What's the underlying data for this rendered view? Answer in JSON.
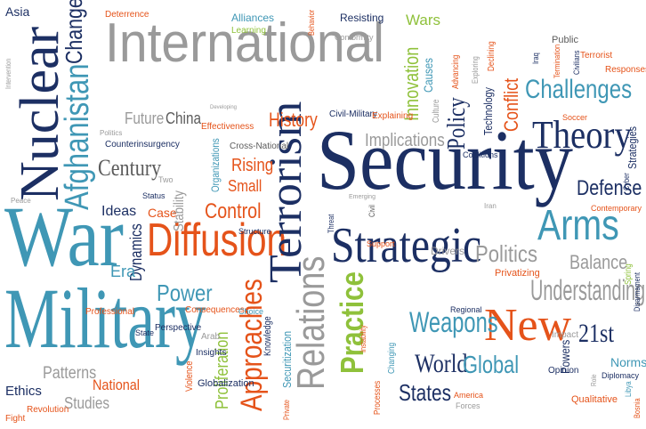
{
  "colors": {
    "navy": "#1c2f63",
    "teal": "#3f97b5",
    "light_teal": "#6fb4cb",
    "orange": "#e5531a",
    "gray": "#9a9a9a",
    "dark_gray": "#5c5c5c",
    "green": "#8fc13b"
  },
  "words": {
    "international": "International",
    "security": "Security",
    "war": "War",
    "military": "Military",
    "nuclear": "Nuclear",
    "afghanistan": "Afghanistan",
    "change": "Change",
    "diffusion": "Diffusion",
    "terrorism": "Terrorism",
    "strategic": "Strategic",
    "relations": "Relations",
    "practice": "Practice",
    "new": "New",
    "theory": "Theory",
    "challenges": "Challenges",
    "arms": "Arms",
    "weapons": "Weapons",
    "understanding": "Understanding",
    "politics": "Politics",
    "power": "Power",
    "approaches": "Approaches",
    "world": "World",
    "global": "Global",
    "states": "States",
    "century": "Century",
    "control": "Control",
    "rising": "Rising",
    "small": "Small",
    "history": "History",
    "implications": "Implications",
    "policy": "Policy",
    "conflict": "Conflict",
    "innovation": "Innovation",
    "defense": "Defense",
    "balance": "Balance",
    "21st": "21st",
    "ethics": "Ethics",
    "patterns": "Patterns",
    "national": "National",
    "studies": "Studies",
    "proliferation": "Proliferation",
    "dynamics": "Dynamics",
    "ideas": "Ideas",
    "era": "Era",
    "case": "Case",
    "stability": "Stability",
    "future": "Future",
    "china": "China",
    "organizations": "Organizations",
    "wars": "Wars",
    "asia": "Asia",
    "deterrence": "Deterrence",
    "alliances": "Alliances",
    "learning": "Learning",
    "resisting": "Resisting",
    "conformity": "Conformity",
    "behavior": "Behavior",
    "public": "Public",
    "terrorist": "Terrorist",
    "responses": "Responses",
    "civilians": "Civilians",
    "strategies": "Strategies",
    "contemporary": "Contemporary",
    "opinion": "Opinion",
    "norms": "Norms",
    "qualitative": "Qualitative",
    "diplomacy": "Diplomacy",
    "impact": "Impact",
    "powers": "Powers",
    "regional": "Regional",
    "drivers": "Drivers",
    "support": "Support",
    "privatizing": "Privatizing",
    "america": "America",
    "forces": "Forces",
    "securitization": "Securitization",
    "knowledge": "Knowledge",
    "globalization": "Globalization",
    "violence": "Violence",
    "insights": "Insights",
    "arab": "Arab",
    "consequences": "Consequences",
    "perspective": "Perspective",
    "professional": "Professional",
    "state": "State",
    "revolution": "Revolution",
    "fight": "Fight",
    "choice": "Choice",
    "structure": "Structure",
    "cross_national": "Cross-National",
    "effectiveness": "Effectiveness",
    "counterinsurgency": "Counterinsurgency",
    "politics_small": "Politics",
    "status": "Status",
    "two": "Two",
    "peace": "Peace",
    "intervention": "Intervention",
    "civil_military": "Civil-Military",
    "explaining": "Explaining",
    "coalitions": "Coalitions",
    "culture": "Culture",
    "causes": "Causes",
    "advancing": "Advancing",
    "technology": "Technology",
    "exploring": "Exploring",
    "declining": "Declining",
    "soccer": "Soccer",
    "iraq": "Iraq",
    "emerging": "Emerging",
    "threat": "Threat",
    "civil": "Civil",
    "changing": "Changing",
    "processes": "Processes",
    "instability": "Instability",
    "private": "Private",
    "spring": "Spring",
    "disarmament": "Disarmament",
    "libya": "Libya",
    "bosnia": "Bosnia",
    "role": "Role",
    "developing": "Developing",
    "cyber": "Cyber",
    "termination": "Termination",
    "iran": "Iran"
  }
}
